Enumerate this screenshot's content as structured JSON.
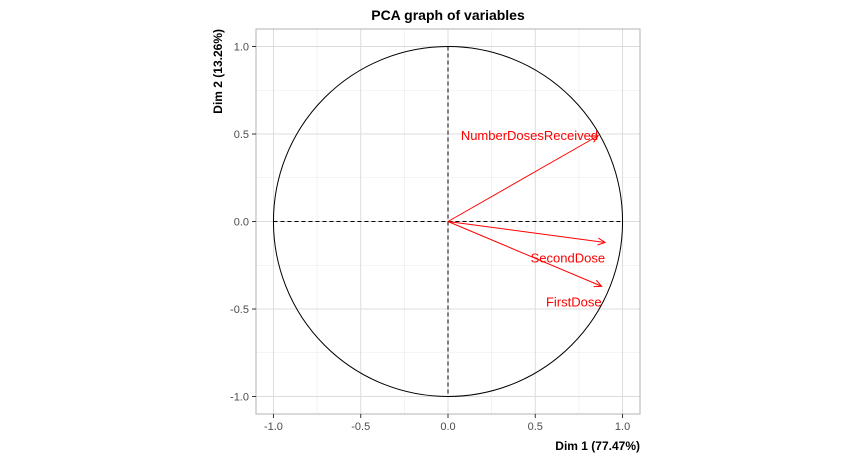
{
  "chart_data": {
    "type": "scatter",
    "title": "PCA graph of variables",
    "xlabel": "Dim 1 (77.47%)",
    "ylabel": "Dim 2 (13.26%)",
    "xlim": [
      -1.1,
      1.1
    ],
    "ylim": [
      -1.1,
      1.1
    ],
    "x_ticks": [
      -1.0,
      -0.5,
      0.0,
      0.5,
      1.0
    ],
    "y_ticks": [
      -1.0,
      -0.5,
      0.0,
      0.5,
      1.0
    ],
    "x_tick_labels": [
      "-1.0",
      "-0.5",
      "0.0",
      "0.5",
      "1.0"
    ],
    "y_tick_labels": [
      "-1.0",
      "-0.5",
      "0.0",
      "0.5",
      "1.0"
    ],
    "grid": true,
    "unit_circle": true,
    "arrow_color": "#ff0000",
    "variables": [
      {
        "name": "NumberDosesReceived",
        "x": 0.86,
        "y": 0.49
      },
      {
        "name": "SecondDose",
        "x": 0.9,
        "y": -0.12
      },
      {
        "name": "FirstDose",
        "x": 0.88,
        "y": -0.37
      }
    ]
  }
}
